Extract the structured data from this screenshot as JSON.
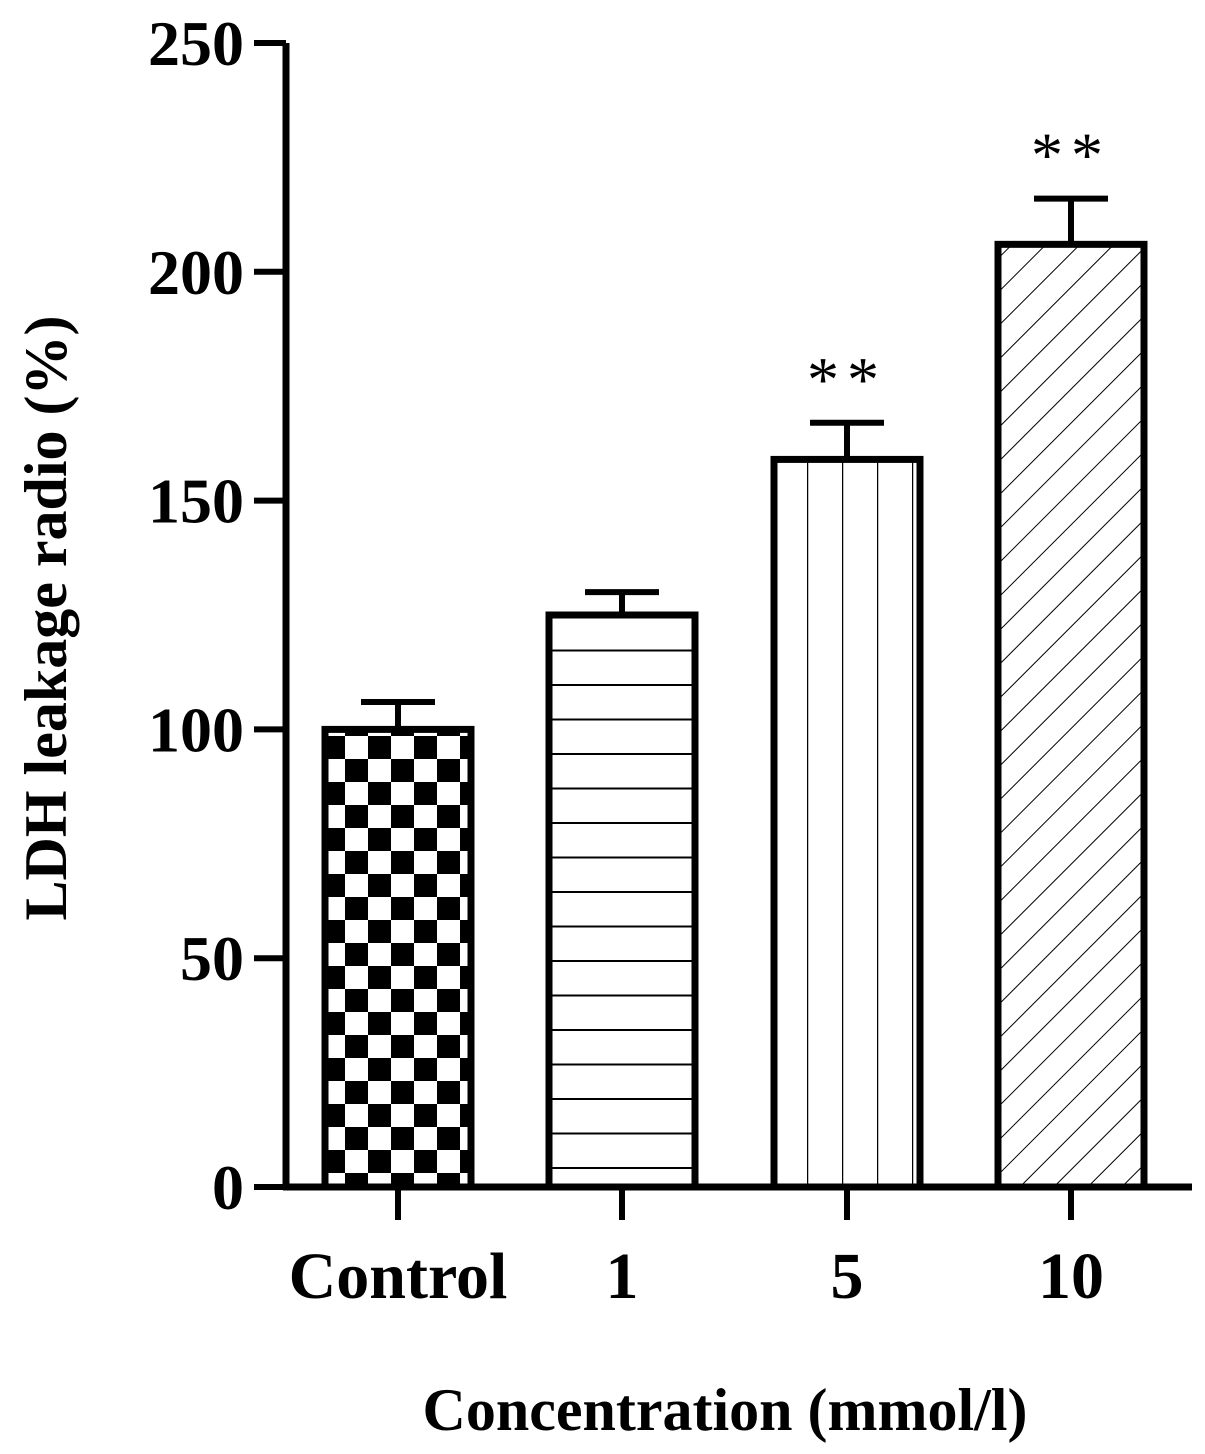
{
  "chart_data": {
    "type": "bar",
    "title": "",
    "xlabel": "Concentration (mmol/l)",
    "ylabel": "LDH leakage radio (%)",
    "categories": [
      "Control",
      "1",
      "5",
      "10"
    ],
    "values": [
      100,
      125,
      159,
      206
    ],
    "errors": [
      6,
      5,
      8,
      10
    ],
    "significance": [
      "",
      "",
      "**",
      "**"
    ],
    "fill_patterns": [
      "checkerboard",
      "horizontal-lines",
      "vertical-lines",
      "diagonal-lines"
    ],
    "ylim": [
      0,
      250
    ],
    "yticks": [
      0,
      50,
      100,
      150,
      200,
      250
    ],
    "grid": false,
    "legend": "none",
    "colors": {
      "stroke": "#000000",
      "background": "#ffffff"
    }
  }
}
